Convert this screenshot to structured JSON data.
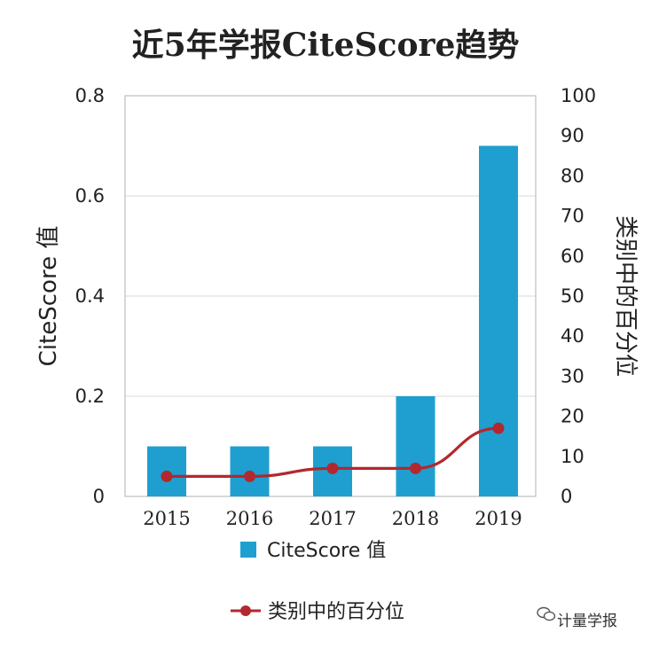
{
  "title": "近5年学报CiteScore趋势",
  "watermark": "计量学报",
  "chart_data": {
    "type": "bar",
    "categories": [
      "2015",
      "2016",
      "2017",
      "2018",
      "2019"
    ],
    "series": [
      {
        "name": "CiteScore 值",
        "type": "bar",
        "axis": "left",
        "color": "#1f9fd0",
        "values": [
          0.1,
          0.1,
          0.1,
          0.2,
          0.7
        ]
      },
      {
        "name": "类别中的百分位",
        "type": "line",
        "axis": "right",
        "color": "#b3282e",
        "values": [
          5,
          5,
          7,
          7,
          17
        ]
      }
    ],
    "ylabel": "CiteScore 值",
    "y2label": "类别中的百分位",
    "ylim": [
      0,
      0.8
    ],
    "yticks": [
      "0",
      "0.2",
      "0.4",
      "0.6",
      "0.8"
    ],
    "y2lim": [
      0,
      100
    ],
    "y2ticks": [
      "0",
      "10",
      "20",
      "30",
      "40",
      "50",
      "60",
      "70",
      "80",
      "90",
      "100"
    ],
    "grid": true,
    "legend_placement": "bottom"
  }
}
